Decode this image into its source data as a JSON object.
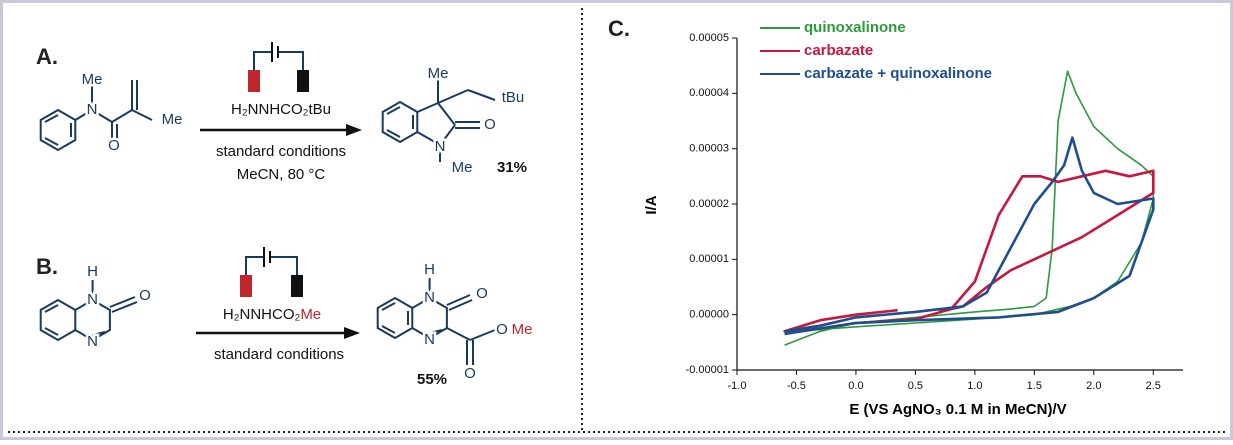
{
  "scheme_a": {
    "label": "A.",
    "reactant": [
      "Me",
      "N",
      "O",
      "Me"
    ],
    "reagent": "H₂NNHCO₂tBu",
    "conditions": [
      "standard conditions",
      "MeCN, 80 °C"
    ],
    "product": [
      "Me",
      "tBu",
      "O",
      "N",
      "Me"
    ],
    "yield": "31%"
  },
  "scheme_b": {
    "label": "B.",
    "reactant": [
      "H",
      "N",
      "O",
      "N"
    ],
    "reagent": [
      "H₂NNHCO₂",
      "Me"
    ],
    "conditions": [
      "standard conditions"
    ],
    "product": [
      "H",
      "N",
      "O",
      "N",
      "O",
      "Me",
      "O"
    ],
    "yield": "55%"
  },
  "chart_data": {
    "type": "line",
    "panel_label": "C.",
    "x_label": "E (VS AgNO₃ 0.1 M in MeCN)/V",
    "y_label": "I/A",
    "xlim": [
      -1.0,
      2.75
    ],
    "ylim": [
      -1e-05,
      5e-05
    ],
    "xticks": [
      {
        "value": -1.0,
        "label": "-1.0"
      },
      {
        "value": -0.5,
        "label": "-0.5"
      },
      {
        "value": 0,
        "label": "0.0"
      },
      {
        "value": 0.5,
        "label": "0.5"
      },
      {
        "value": 1.0,
        "label": "1.0"
      },
      {
        "value": 1.5,
        "label": "1.5"
      },
      {
        "value": 2.0,
        "label": "2.0"
      },
      {
        "value": 2.5,
        "label": "2.5"
      }
    ],
    "yticks": [
      {
        "value": -1e-05,
        "label": "-0.00001"
      },
      {
        "value": 0,
        "label": "0.00000"
      },
      {
        "value": 1e-05,
        "label": "0.00001"
      },
      {
        "value": 2e-05,
        "label": "0.00002"
      },
      {
        "value": 3e-05,
        "label": "0.00003"
      },
      {
        "value": 4e-05,
        "label": "0.00004"
      },
      {
        "value": 5e-05,
        "label": "0.00005"
      }
    ],
    "series": [
      {
        "name": "quinoxalinone",
        "color": "#2e9a3e",
        "x": [
          -0.6,
          -0.3,
          0,
          0.5,
          1.0,
          1.3,
          1.5,
          1.6,
          1.65,
          1.7,
          1.78,
          1.85,
          2.0,
          2.2,
          2.4,
          2.5,
          2.5,
          2.4,
          2.2,
          2.0,
          1.8,
          1.5,
          1.0,
          0.5,
          0,
          -0.5,
          -0.6
        ],
        "values": [
          -5.5e-06,
          -3e-06,
          -1.5e-06,
          -5e-07,
          5e-07,
          1e-06,
          1.5e-06,
          3e-06,
          1.2e-05,
          3.5e-05,
          4.4e-05,
          4e-05,
          3.4e-05,
          3e-05,
          2.7e-05,
          2.5e-05,
          2.1e-05,
          1.3e-05,
          6e-06,
          3e-06,
          1.5e-06,
          0,
          -8e-07,
          -1.5e-06,
          -2.2e-06,
          -3e-06,
          -3.5e-06
        ]
      },
      {
        "name": "carbazate",
        "color": "#c8173f",
        "x": [
          0.35,
          0,
          -0.3,
          -0.6,
          -0.3,
          0,
          0.5,
          0.8,
          1.0,
          1.2,
          1.4,
          1.55,
          1.7,
          1.9,
          2.1,
          2.3,
          2.5,
          2.5,
          2.2,
          1.9,
          1.5,
          1.3,
          1.1,
          0.9,
          0.7
        ],
        "values": [
          8e-07,
          0,
          -1e-06,
          -3e-06,
          -2.5e-06,
          -1.5e-06,
          -8e-07,
          1e-06,
          6e-06,
          1.8e-05,
          2.5e-05,
          2.5e-05,
          2.4e-05,
          2.5e-05,
          2.6e-05,
          2.5e-05,
          2.6e-05,
          2.2e-05,
          1.8e-05,
          1.4e-05,
          1e-05,
          8e-06,
          5e-06,
          1.5e-06,
          5e-07
        ]
      },
      {
        "name": "carbazate + quinoxalinone",
        "color": "#1f4e8c",
        "x": [
          -0.6,
          -0.3,
          0,
          0.5,
          0.9,
          1.1,
          1.3,
          1.5,
          1.65,
          1.75,
          1.82,
          1.9,
          2.0,
          2.2,
          2.5,
          2.5,
          2.3,
          2.0,
          1.7,
          1.2,
          0.5,
          0,
          -0.6
        ],
        "values": [
          -3e-06,
          -2e-06,
          -5e-07,
          5e-07,
          1.5e-06,
          4e-06,
          1.2e-05,
          2e-05,
          2.4e-05,
          2.7e-05,
          3.2e-05,
          2.6e-05,
          2.2e-05,
          2e-05,
          2.1e-05,
          1.9e-05,
          7e-06,
          3e-06,
          5e-07,
          -5e-07,
          -1e-06,
          -1.5e-06,
          -3.5e-06
        ]
      }
    ]
  }
}
